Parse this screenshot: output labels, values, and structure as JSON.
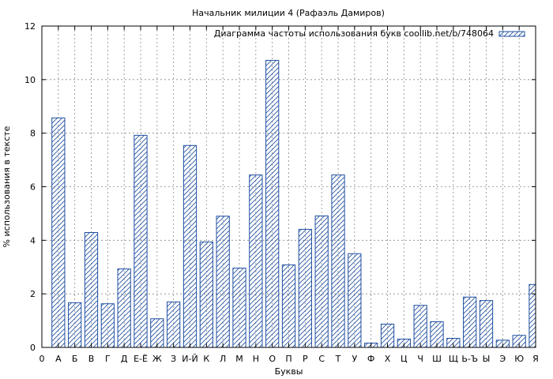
{
  "chart_data": {
    "type": "bar",
    "title": "Начальник милиции 4 (Рафаэль Дамиров)",
    "xlabel": "Буквы",
    "ylabel": "% использования в тексте",
    "ylim": [
      0,
      12
    ],
    "yticks": [
      0,
      2,
      4,
      6,
      8,
      10,
      12
    ],
    "x_origin_label": "0",
    "grid": true,
    "legend_position": "top-right",
    "categories": [
      "А",
      "Б",
      "В",
      "Г",
      "Д",
      "Е-Ё",
      "Ж",
      "З",
      "И-Й",
      "К",
      "Л",
      "М",
      "Н",
      "О",
      "П",
      "Р",
      "С",
      "Т",
      "У",
      "Ф",
      "Х",
      "Ц",
      "Ч",
      "Ш",
      "Щ",
      "Ь-Ъ",
      "Ы",
      "Э",
      "Ю",
      "Я"
    ],
    "series": [
      {
        "name": "Диаграмма частоты использования букв coollib.net/b/748064",
        "color": "#1f4fa0",
        "values": [
          8.57,
          1.67,
          4.29,
          1.63,
          2.93,
          7.92,
          1.07,
          1.7,
          7.54,
          3.94,
          4.9,
          2.96,
          6.44,
          10.72,
          3.08,
          4.41,
          4.91,
          6.44,
          3.5,
          0.16,
          0.87,
          0.31,
          1.57,
          0.96,
          0.34,
          1.88,
          1.75,
          0.27,
          0.45,
          2.35
        ]
      }
    ]
  }
}
